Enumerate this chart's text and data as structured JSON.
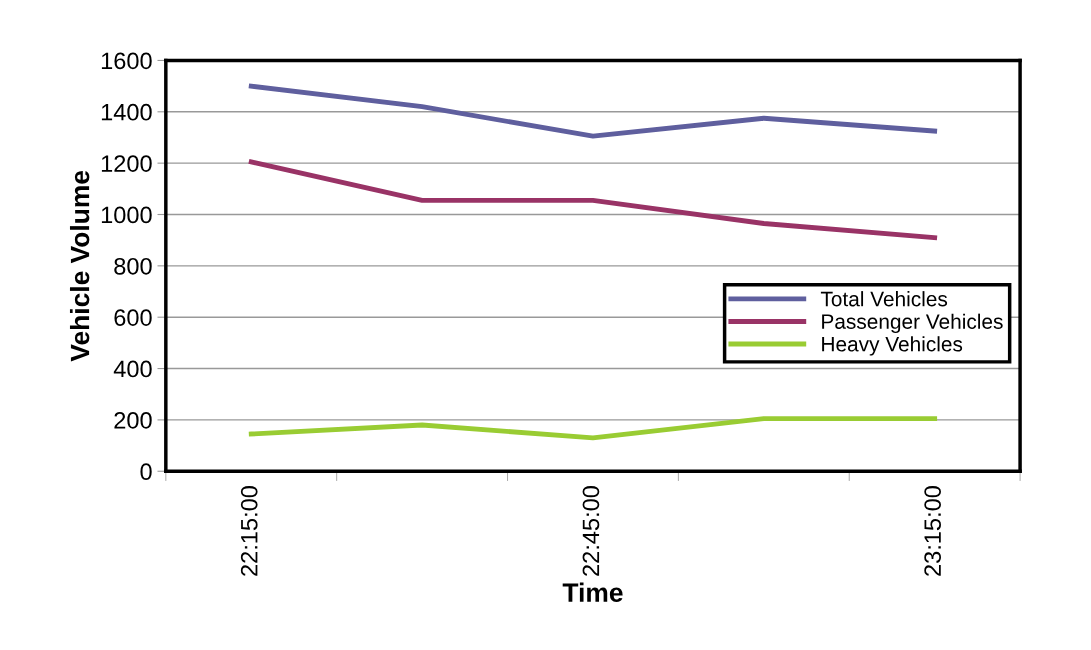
{
  "chart_data": {
    "type": "line",
    "xlabel": "Time",
    "ylabel": "Vehicle Volume",
    "categories": [
      "22:15:00",
      null,
      "22:45:00",
      null,
      "23:15:00"
    ],
    "series": [
      {
        "name": "Total Vehicles",
        "color": "#5f5f9e",
        "values": [
          1500,
          1420,
          1305,
          1375,
          1325
        ]
      },
      {
        "name": "Passenger Vehicles",
        "color": "#993366",
        "values": [
          1205,
          1055,
          1055,
          965,
          910
        ]
      },
      {
        "name": "Heavy Vehicles",
        "color": "#99cc33",
        "values": [
          145,
          180,
          130,
          205,
          205
        ]
      }
    ],
    "ylim": [
      0,
      1600
    ],
    "yticks": [
      0,
      200,
      400,
      600,
      800,
      1000,
      1200,
      1400,
      1600
    ],
    "grid": "y",
    "legend": "right",
    "marker": "none",
    "line_style": "solid"
  }
}
